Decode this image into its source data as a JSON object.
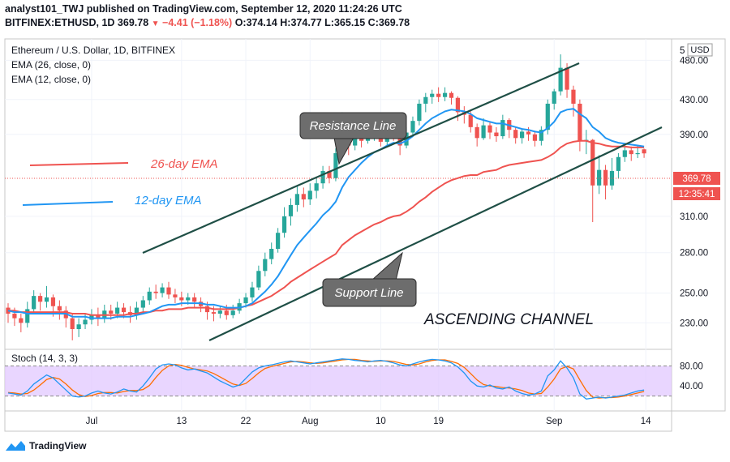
{
  "header": {
    "line1": "analyst101_TWJ published on TradingView.com, September 12, 2020 11:24:26 UTC",
    "symbol": "BITFINEX:ETHUSD, 1D",
    "last": "369.78",
    "change": "−4.41 (−1.18%)",
    "ohlc": "O:374.14 H:374.77 L:365.15 C:369.78"
  },
  "legend": {
    "title": "Ethereum / U.S. Dollar, 1D, BITFINEX",
    "ema26": "EMA (26, close, 0)",
    "ema12": "EMA (12, close, 0)"
  },
  "annotations": {
    "resistance": "Resistance Line",
    "support": "Support Line",
    "channel": "ASCENDING CHANNEL",
    "ema26_label": "26-day EMA",
    "ema12_label": "12-day EMA"
  },
  "price_axis": {
    "currency": "USD",
    "top_label": "5",
    "ticks": [
      "480.00",
      "430.00",
      "390.00",
      "310.00",
      "280.00",
      "250.00",
      "230.00"
    ],
    "last_price": "369.78",
    "countdown": "12:35:41"
  },
  "stoch": {
    "label": "Stoch (14, 3, 3)",
    "ticks": [
      "80.00",
      "40.00"
    ]
  },
  "time_axis": [
    "Jul",
    "13",
    "22",
    "Aug",
    "10",
    "19",
    "Sep",
    "14"
  ],
  "footer": {
    "brand": "TradingView"
  },
  "colors": {
    "up": "#26a69a",
    "down": "#ef5350",
    "ema26": "#ef5350",
    "ema12": "#2196f3",
    "channel": "#1f4f46",
    "stoch_k": "#2196f3",
    "stoch_d": "#ff6d00",
    "stoch_band": "#e1c8ff"
  },
  "chart_data": {
    "type": "candlestick",
    "ylim": [
      215,
      505
    ],
    "scale": "log",
    "candles": [
      [
        240,
        236,
        243,
        230
      ],
      [
        236,
        233,
        240,
        228
      ],
      [
        233,
        230,
        236,
        224
      ],
      [
        230,
        239,
        244,
        227
      ],
      [
        239,
        248,
        252,
        236
      ],
      [
        248,
        244,
        250,
        238
      ],
      [
        244,
        247,
        255,
        240
      ],
      [
        247,
        241,
        249,
        234
      ],
      [
        241,
        238,
        245,
        232
      ],
      [
        238,
        233,
        241,
        227
      ],
      [
        233,
        226,
        236,
        219
      ],
      [
        226,
        229,
        233,
        221
      ],
      [
        229,
        232,
        236,
        226
      ],
      [
        232,
        235,
        239,
        229
      ],
      [
        235,
        233,
        240,
        228
      ],
      [
        233,
        238,
        242,
        230
      ],
      [
        238,
        236,
        242,
        232
      ],
      [
        236,
        240,
        244,
        233
      ],
      [
        240,
        237,
        243,
        233
      ],
      [
        237,
        235,
        241,
        230
      ],
      [
        235,
        240,
        244,
        232
      ],
      [
        240,
        245,
        248,
        236
      ],
      [
        245,
        251,
        254,
        242
      ],
      [
        251,
        250,
        256,
        246
      ],
      [
        250,
        254,
        257,
        247
      ],
      [
        254,
        249,
        258,
        246
      ],
      [
        249,
        247,
        253,
        243
      ],
      [
        247,
        245,
        251,
        241
      ],
      [
        245,
        247,
        250,
        242
      ],
      [
        247,
        244,
        250,
        240
      ],
      [
        244,
        241,
        247,
        237
      ],
      [
        241,
        237,
        244,
        232
      ],
      [
        237,
        236,
        241,
        231
      ],
      [
        236,
        238,
        241,
        233
      ],
      [
        238,
        235,
        242,
        232
      ],
      [
        235,
        238,
        242,
        233
      ],
      [
        238,
        243,
        246,
        236
      ],
      [
        243,
        247,
        250,
        240
      ],
      [
        247,
        254,
        258,
        244
      ],
      [
        254,
        266,
        270,
        252
      ],
      [
        266,
        275,
        280,
        262
      ],
      [
        275,
        283,
        288,
        271
      ],
      [
        283,
        296,
        300,
        280
      ],
      [
        296,
        310,
        318,
        292
      ],
      [
        310,
        320,
        326,
        302
      ],
      [
        320,
        330,
        338,
        314
      ],
      [
        330,
        325,
        336,
        318
      ],
      [
        325,
        333,
        340,
        320
      ],
      [
        333,
        340,
        346,
        326
      ],
      [
        340,
        352,
        357,
        335
      ],
      [
        352,
        345,
        357,
        340
      ],
      [
        345,
        370,
        375,
        342
      ],
      [
        370,
        388,
        415,
        366
      ],
      [
        388,
        378,
        393,
        368
      ],
      [
        378,
        386,
        390,
        373
      ],
      [
        386,
        383,
        392,
        376
      ],
      [
        383,
        389,
        396,
        380
      ],
      [
        389,
        392,
        396,
        383
      ],
      [
        392,
        382,
        399,
        377
      ],
      [
        382,
        392,
        398,
        376
      ],
      [
        392,
        389,
        397,
        383
      ],
      [
        389,
        378,
        394,
        368
      ],
      [
        378,
        392,
        398,
        375
      ],
      [
        392,
        405,
        410,
        388
      ],
      [
        405,
        425,
        430,
        400
      ],
      [
        425,
        433,
        438,
        415
      ],
      [
        433,
        437,
        442,
        425
      ],
      [
        437,
        433,
        445,
        427
      ],
      [
        433,
        438,
        445,
        428
      ],
      [
        438,
        432,
        440,
        424
      ],
      [
        432,
        415,
        434,
        405
      ],
      [
        415,
        412,
        422,
        402
      ],
      [
        412,
        398,
        416,
        392
      ],
      [
        398,
        386,
        402,
        377
      ],
      [
        386,
        400,
        408,
        384
      ],
      [
        400,
        392,
        404,
        385
      ],
      [
        392,
        388,
        398,
        382
      ],
      [
        388,
        406,
        412,
        385
      ],
      [
        406,
        395,
        408,
        386
      ],
      [
        395,
        386,
        398,
        380
      ],
      [
        386,
        393,
        396,
        380
      ],
      [
        393,
        390,
        398,
        383
      ],
      [
        390,
        383,
        394,
        377
      ],
      [
        383,
        395,
        399,
        378
      ],
      [
        395,
        425,
        430,
        390
      ],
      [
        425,
        440,
        443,
        418
      ],
      [
        440,
        470,
        488,
        435
      ],
      [
        470,
        442,
        476,
        432
      ],
      [
        442,
        425,
        447,
        410
      ],
      [
        425,
        383,
        430,
        372
      ],
      [
        383,
        384,
        395,
        369
      ],
      [
        384,
        338,
        385,
        305
      ],
      [
        338,
        353,
        368,
        330
      ],
      [
        353,
        338,
        358,
        325
      ],
      [
        338,
        352,
        365,
        334
      ],
      [
        352,
        366,
        370,
        345
      ],
      [
        366,
        373,
        377,
        361
      ],
      [
        373,
        369,
        377,
        362
      ],
      [
        369,
        370,
        378,
        365
      ],
      [
        374,
        369.78,
        374.77,
        365.15
      ]
    ],
    "ema26": [
      238,
      238,
      237,
      237,
      237,
      237,
      237,
      237,
      237,
      237,
      236,
      236,
      236,
      235,
      235,
      235,
      235,
      235,
      235,
      236,
      236,
      237,
      237,
      238,
      238,
      239,
      239,
      239,
      240,
      240,
      240,
      240,
      239,
      239,
      239,
      239,
      240,
      241,
      242,
      244,
      246,
      248,
      251,
      254,
      258,
      261,
      264,
      267,
      270,
      273,
      276,
      279,
      286,
      290,
      294,
      297,
      300,
      303,
      305,
      308,
      310,
      311,
      314,
      318,
      323,
      327,
      332,
      336,
      340,
      343,
      345,
      347,
      348,
      348,
      351,
      352,
      353,
      356,
      358,
      359,
      360,
      361,
      362,
      363,
      366,
      370,
      376,
      380,
      382,
      383,
      383,
      381,
      380,
      378,
      377,
      377,
      377,
      376,
      376,
      376
    ],
    "ema12": [
      238,
      237,
      237,
      236,
      236,
      236,
      236,
      236,
      236,
      236,
      234,
      234,
      234,
      233,
      233,
      233,
      233,
      234,
      234,
      234,
      235,
      236,
      237,
      239,
      241,
      242,
      242,
      243,
      243,
      243,
      243,
      242,
      242,
      241,
      240,
      240,
      240,
      241,
      243,
      247,
      251,
      256,
      262,
      270,
      278,
      286,
      292,
      298,
      304,
      311,
      316,
      323,
      336,
      346,
      353,
      360,
      366,
      371,
      374,
      378,
      381,
      380,
      383,
      388,
      395,
      402,
      408,
      412,
      416,
      418,
      417,
      416,
      413,
      408,
      406,
      404,
      402,
      402,
      400,
      398,
      396,
      395,
      393,
      392,
      397,
      404,
      415,
      418,
      419,
      413,
      408,
      398,
      393,
      386,
      383,
      381,
      380,
      379,
      378,
      377
    ],
    "stoch_k": [
      26,
      24,
      22,
      30,
      44,
      53,
      62,
      56,
      44,
      32,
      20,
      18,
      20,
      26,
      30,
      26,
      24,
      28,
      34,
      30,
      28,
      40,
      56,
      74,
      82,
      84,
      82,
      76,
      72,
      74,
      70,
      66,
      58,
      50,
      44,
      38,
      42,
      55,
      68,
      76,
      80,
      82,
      85,
      88,
      90,
      88,
      86,
      84,
      86,
      88,
      90,
      92,
      94,
      93,
      91,
      90,
      88,
      90,
      91,
      89,
      86,
      82,
      80,
      84,
      88,
      91,
      93,
      92,
      90,
      86,
      78,
      66,
      50,
      40,
      38,
      42,
      36,
      34,
      38,
      30,
      25,
      22,
      24,
      30,
      60,
      72,
      90,
      76,
      56,
      24,
      14,
      16,
      18,
      16,
      18,
      20,
      22,
      26,
      30,
      32
    ],
    "stoch_d": [
      27,
      26,
      24,
      25,
      32,
      42,
      53,
      57,
      54,
      44,
      32,
      23,
      19,
      21,
      25,
      27,
      27,
      26,
      29,
      31,
      31,
      33,
      41,
      57,
      71,
      80,
      83,
      81,
      77,
      74,
      72,
      70,
      65,
      58,
      51,
      44,
      41,
      45,
      55,
      66,
      75,
      79,
      82,
      85,
      88,
      89,
      88,
      86,
      85,
      86,
      88,
      90,
      92,
      93,
      93,
      91,
      90,
      89,
      90,
      90,
      89,
      86,
      83,
      82,
      84,
      88,
      91,
      92,
      92,
      89,
      85,
      77,
      65,
      52,
      43,
      40,
      39,
      37,
      36,
      34,
      31,
      26,
      24,
      25,
      38,
      54,
      74,
      79,
      74,
      52,
      31,
      18,
      16,
      17,
      17,
      18,
      20,
      23,
      26,
      29
    ]
  }
}
